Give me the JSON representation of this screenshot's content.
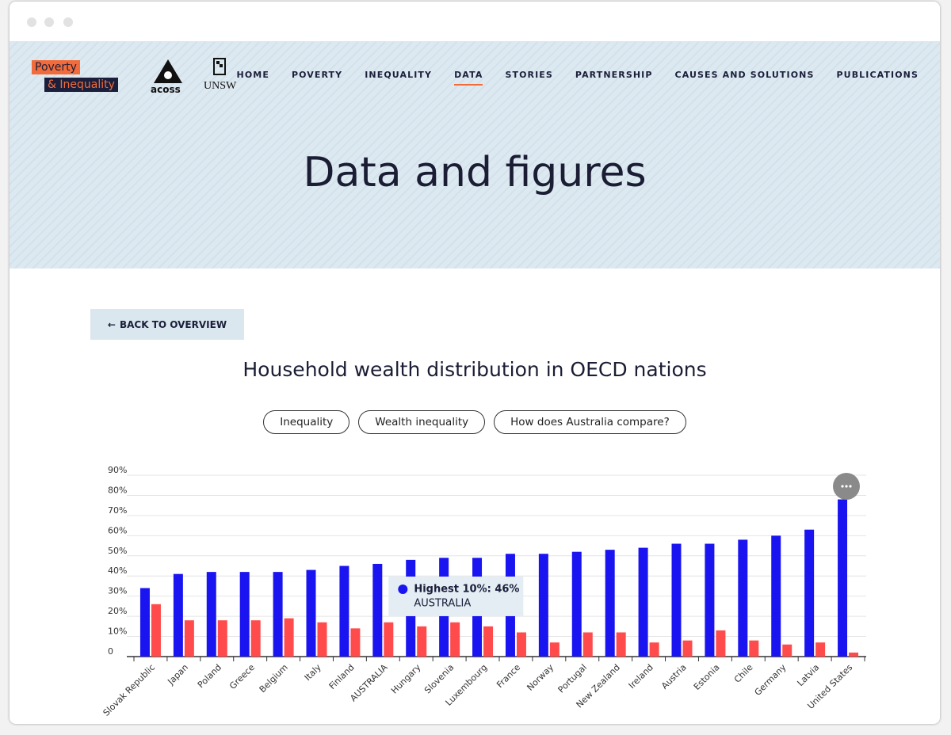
{
  "header": {
    "logo": [
      "Poverty",
      "& Inequality"
    ],
    "partners": [
      "acoss",
      "UNSW"
    ],
    "nav": [
      "HOME",
      "POVERTY",
      "INEQUALITY",
      "DATA",
      "STORIES",
      "PARTNERSHIP",
      "CAUSES AND SOLUTIONS",
      "PUBLICATIONS"
    ],
    "active_nav": 3
  },
  "page_title": "Data and figures",
  "back_button": "BACK TO OVERVIEW",
  "tabs": [
    "Inequality",
    "Wealth inequality",
    "How does Australia compare?"
  ],
  "chart_data": {
    "type": "bar",
    "title": "Household wealth distribution in OECD nations",
    "categories": [
      "Slovak Republic",
      "Japan",
      "Poland",
      "Greece",
      "Belgium",
      "Italy",
      "Finland",
      "AUSTRALIA",
      "Hungary",
      "Slovenia",
      "Luxembourg",
      "France",
      "Norway",
      "Portugal",
      "New Zealand",
      "Ireland",
      "Austria",
      "Estonia",
      "Chile",
      "Germany",
      "Latvia",
      "United States"
    ],
    "series": [
      {
        "color": "#1a14f0",
        "values": [
          34,
          41,
          42,
          42,
          42,
          43,
          45,
          46,
          48,
          49,
          49,
          51,
          51,
          52,
          53,
          54,
          56,
          56,
          58,
          60,
          63,
          78
        ]
      },
      {
        "color": "#ff4b4b",
        "values": [
          26,
          18,
          18,
          18,
          19,
          17,
          14,
          17,
          15,
          17,
          15,
          12,
          7,
          12,
          12,
          7,
          8,
          13,
          8,
          6,
          7,
          2
        ]
      }
    ],
    "ylim": [
      0,
      90
    ],
    "yticks": [
      0,
      {
        "value": 10,
        "label": "10%"
      },
      {
        "value": 20,
        "label": "20%"
      },
      {
        "value": 30,
        "label": "30%"
      },
      {
        "value": 40,
        "label": "40%"
      },
      {
        "value": 50,
        "label": "50%"
      },
      {
        "value": 60,
        "label": "60%"
      },
      {
        "value": 70,
        "label": "70%"
      },
      {
        "value": 80,
        "label": "80%"
      },
      {
        "value": 90,
        "label": "90%"
      }
    ],
    "grid": true,
    "tooltip": {
      "label": "Highest 10%: 46%",
      "category": "AUSTRALIA"
    }
  }
}
